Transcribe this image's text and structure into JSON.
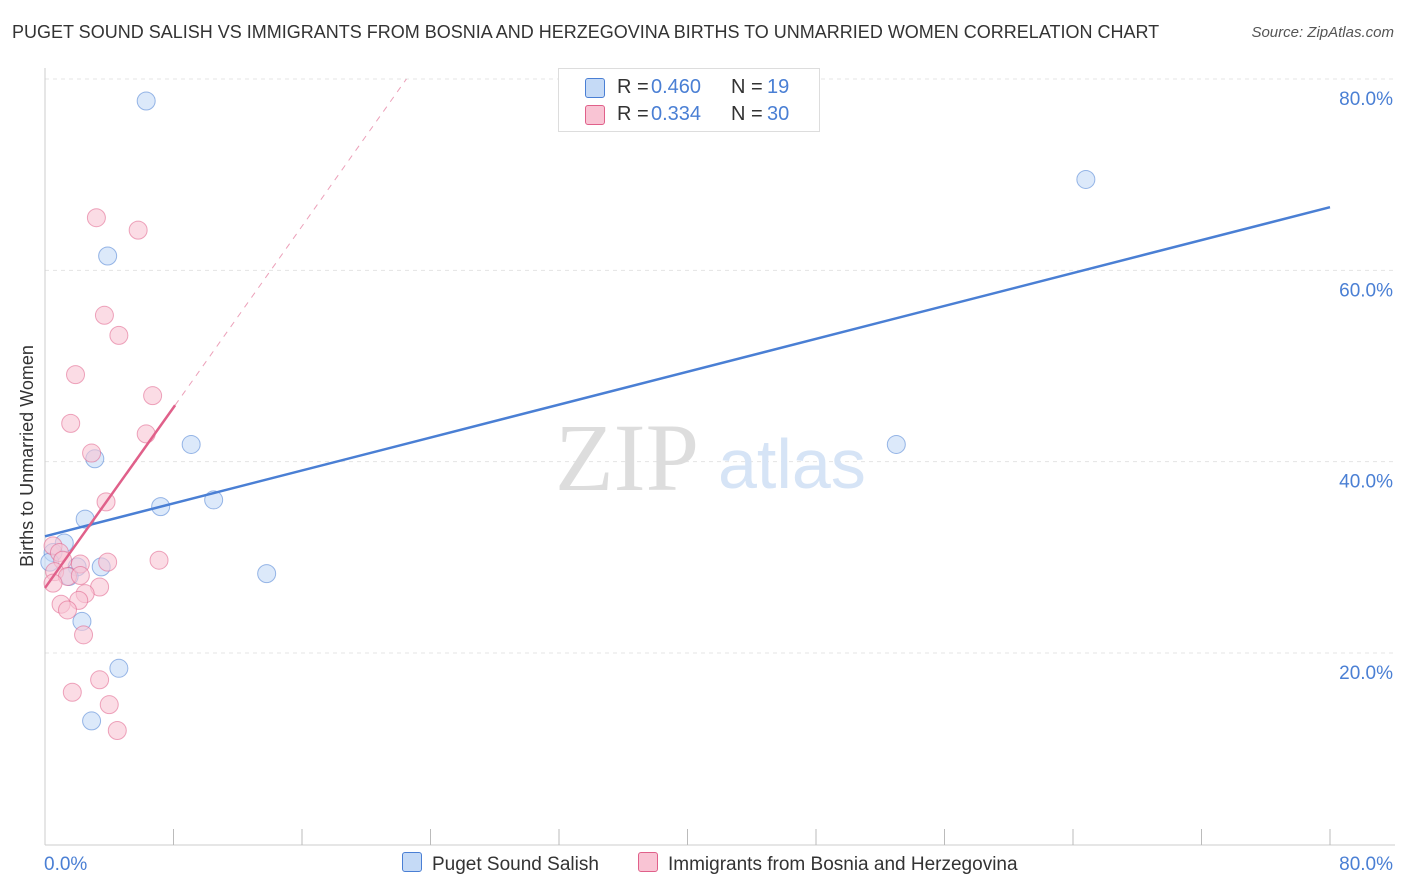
{
  "title": "PUGET SOUND SALISH VS IMMIGRANTS FROM BOSNIA AND HERZEGOVINA BIRTHS TO UNMARRIED WOMEN CORRELATION CHART",
  "source": "Source: ZipAtlas.com",
  "watermark": {
    "zip": "ZIP",
    "atlas": "atlas"
  },
  "legend_top": [
    {
      "r_label": "R =",
      "r_value": "0.460",
      "n_label": "N =",
      "n_value": "19",
      "color": "#aac8f0"
    },
    {
      "r_label": "R =",
      "r_value": "0.334",
      "n_label": "N =",
      "n_value": "30",
      "color": "#f7b8cc"
    }
  ],
  "chart_data": {
    "type": "scatter",
    "title": "PUGET SOUND SALISH VS IMMIGRANTS FROM BOSNIA AND HERZEGOVINA BIRTHS TO UNMARRIED WOMEN CORRELATION CHART",
    "xlabel": "",
    "ylabel": "Births to Unmarried Women",
    "xlim": [
      0,
      80
    ],
    "ylim": [
      0,
      82
    ],
    "x_tick_labels": [
      "0.0%",
      "80.0%"
    ],
    "y_ticks": [
      20,
      40,
      60,
      80
    ],
    "y_tick_labels": [
      "20.0%",
      "40.0%",
      "60.0%",
      "80.0%"
    ],
    "grid": true,
    "legend_position": "bottom",
    "series": [
      {
        "name": "Puget Sound Salish",
        "color": "#4a7fd4",
        "fill": "#c5daf6",
        "points": [
          {
            "x": 6.3,
            "y": 77.7
          },
          {
            "x": 64.8,
            "y": 69.5
          },
          {
            "x": 3.9,
            "y": 61.5
          },
          {
            "x": 9.1,
            "y": 41.8
          },
          {
            "x": 3.1,
            "y": 40.3
          },
          {
            "x": 53.0,
            "y": 41.8
          },
          {
            "x": 10.5,
            "y": 36.0
          },
          {
            "x": 7.2,
            "y": 35.3
          },
          {
            "x": 2.5,
            "y": 34.0
          },
          {
            "x": 1.2,
            "y": 31.5
          },
          {
            "x": 0.5,
            "y": 30.5
          },
          {
            "x": 2.0,
            "y": 29.0
          },
          {
            "x": 3.5,
            "y": 29.0
          },
          {
            "x": 1.5,
            "y": 28.0
          },
          {
            "x": 13.8,
            "y": 28.3
          },
          {
            "x": 2.3,
            "y": 23.3
          },
          {
            "x": 4.6,
            "y": 18.4
          },
          {
            "x": 2.9,
            "y": 12.9
          },
          {
            "x": 0.3,
            "y": 29.5
          }
        ],
        "trend": {
          "x0": 0,
          "y0": 32.2,
          "x1": 80,
          "y1": 66.6
        }
      },
      {
        "name": "Immigrants from Bosnia and Herzegovina",
        "color": "#e0608a",
        "fill": "#f9c4d4",
        "points": [
          {
            "x": 3.2,
            "y": 65.5
          },
          {
            "x": 5.8,
            "y": 64.2
          },
          {
            "x": 3.7,
            "y": 55.3
          },
          {
            "x": 4.6,
            "y": 53.2
          },
          {
            "x": 1.9,
            "y": 49.1
          },
          {
            "x": 6.7,
            "y": 46.9
          },
          {
            "x": 1.6,
            "y": 44.0
          },
          {
            "x": 6.3,
            "y": 42.9
          },
          {
            "x": 2.9,
            "y": 40.9
          },
          {
            "x": 3.8,
            "y": 35.8
          },
          {
            "x": 0.5,
            "y": 31.2
          },
          {
            "x": 0.9,
            "y": 30.5
          },
          {
            "x": 1.1,
            "y": 29.7
          },
          {
            "x": 2.2,
            "y": 29.3
          },
          {
            "x": 3.9,
            "y": 29.5
          },
          {
            "x": 7.1,
            "y": 29.7
          },
          {
            "x": 0.6,
            "y": 28.5
          },
          {
            "x": 1.4,
            "y": 28.0
          },
          {
            "x": 2.2,
            "y": 28.1
          },
          {
            "x": 0.5,
            "y": 27.3
          },
          {
            "x": 3.4,
            "y": 26.9
          },
          {
            "x": 2.5,
            "y": 26.2
          },
          {
            "x": 2.1,
            "y": 25.5
          },
          {
            "x": 1.0,
            "y": 25.1
          },
          {
            "x": 1.4,
            "y": 24.5
          },
          {
            "x": 2.4,
            "y": 21.9
          },
          {
            "x": 1.7,
            "y": 15.9
          },
          {
            "x": 3.4,
            "y": 17.2
          },
          {
            "x": 4.0,
            "y": 14.6
          },
          {
            "x": 4.5,
            "y": 11.9
          }
        ],
        "trend": {
          "x0": 0,
          "y0": 26.8,
          "x1": 8.1,
          "y1": 45.9
        },
        "trend_extension": {
          "x0": 8.1,
          "y0": 45.9,
          "x1": 22.5,
          "y1": 80.0
        }
      }
    ]
  },
  "legend_bottom": [
    {
      "label": "Puget Sound Salish",
      "color": "#aac8f0",
      "border": "#4a7fd4"
    },
    {
      "label": "Immigrants from Bosnia and Herzegovina",
      "color": "#f7b8cc",
      "border": "#e0608a"
    }
  ]
}
